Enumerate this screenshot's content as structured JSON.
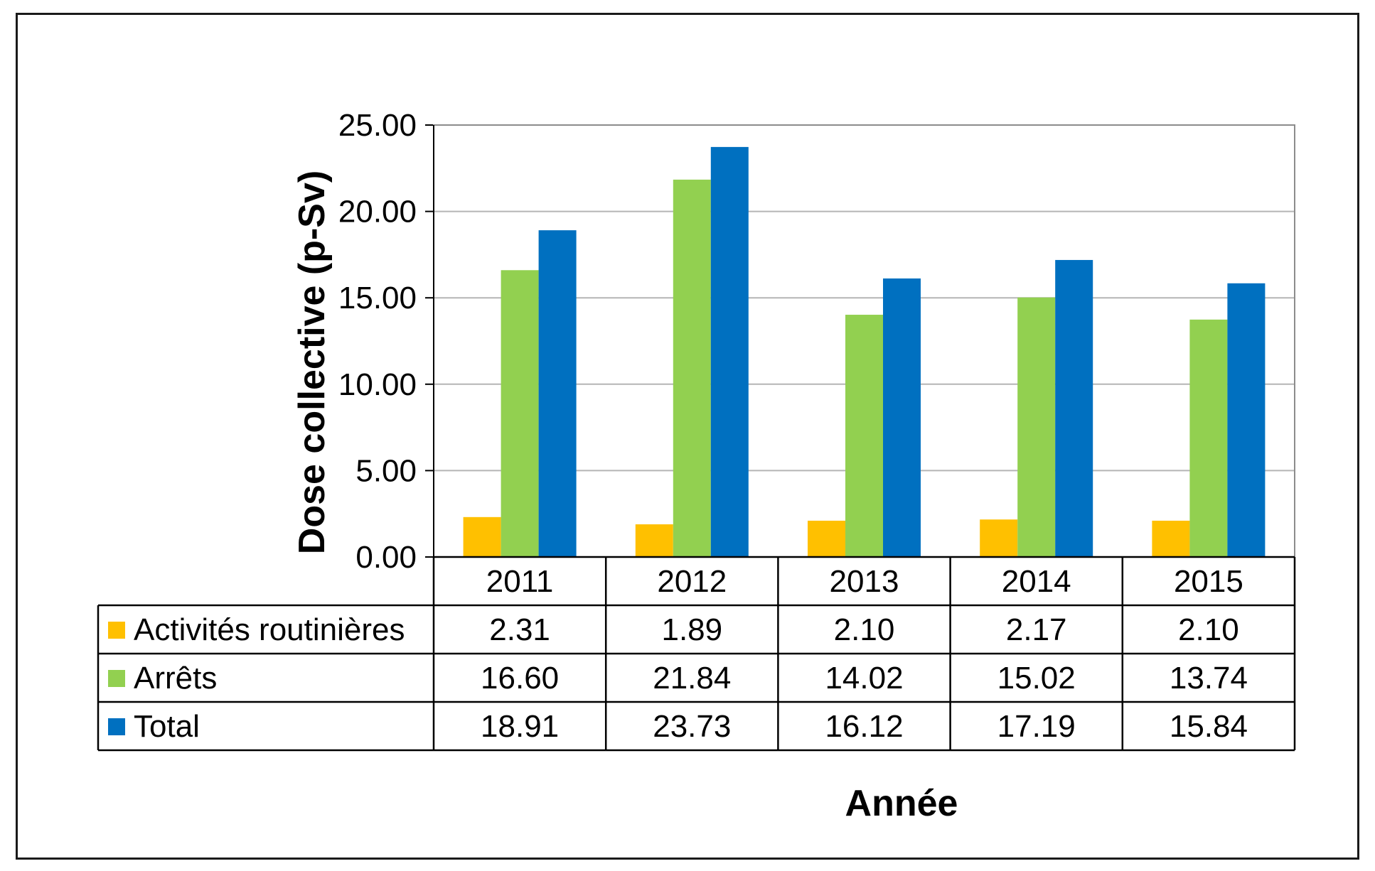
{
  "chart_data": {
    "type": "bar",
    "categories": [
      "2011",
      "2012",
      "2013",
      "2014",
      "2015"
    ],
    "series": [
      {
        "name": "Activités routinières",
        "color": "#FFC000",
        "values": [
          2.31,
          1.89,
          2.1,
          2.17,
          2.1
        ]
      },
      {
        "name": "Arrêts",
        "color": "#92D050",
        "values": [
          16.6,
          21.84,
          14.02,
          15.02,
          13.74
        ]
      },
      {
        "name": "Total",
        "color": "#0070C0",
        "values": [
          18.91,
          23.73,
          16.12,
          17.19,
          15.84
        ]
      }
    ],
    "table_values": [
      [
        "2.31",
        "1.89",
        "2.10",
        "2.17",
        "2.10"
      ],
      [
        "16.60",
        "21.84",
        "14.02",
        "15.02",
        "13.74"
      ],
      [
        "18.91",
        "23.73",
        "16.12",
        "17.19",
        "15.84"
      ]
    ],
    "yticks": [
      "0.00",
      "5.00",
      "10.00",
      "15.00",
      "20.00",
      "25.00"
    ],
    "ytick_values": [
      0,
      5,
      10,
      15,
      20,
      25
    ],
    "xlabel": "Année",
    "ylabel": "Dose collective (p-Sv)",
    "ylim": [
      0,
      25
    ],
    "grid": true,
    "legend": "data-table"
  }
}
